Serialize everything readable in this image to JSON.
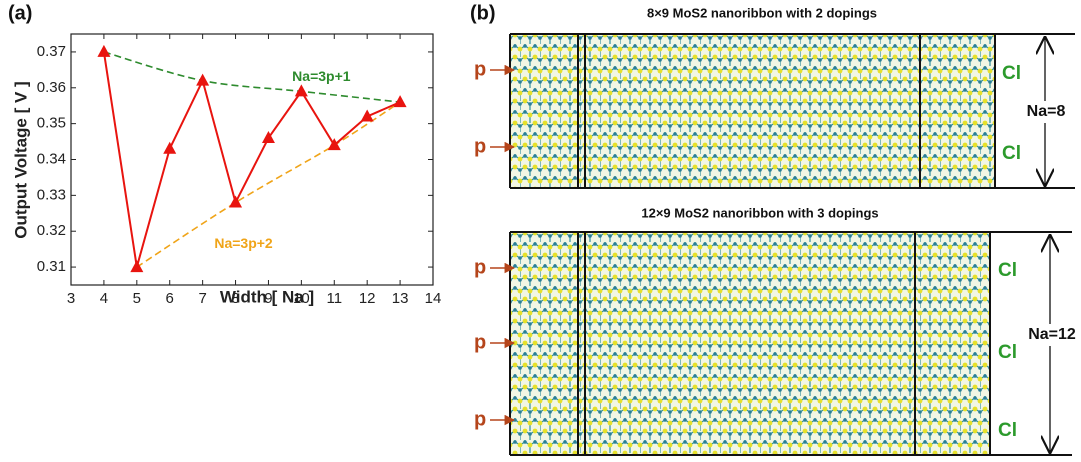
{
  "panel_a": {
    "label": "(a)"
  },
  "chart_data": {
    "type": "line",
    "x_label": "Width [ Na ]",
    "y_label": "Output Voltage [ V ]",
    "xlim": [
      3,
      14
    ],
    "ylim": [
      0.305,
      0.375
    ],
    "xticks": [
      3,
      4,
      5,
      6,
      7,
      8,
      9,
      10,
      11,
      12,
      13,
      14
    ],
    "yticks": [
      0.31,
      0.32,
      0.33,
      0.34,
      0.35,
      0.36,
      0.37
    ],
    "series": [
      {
        "color": "#e8140f",
        "style": "solid",
        "marker": "triangle",
        "x": [
          4,
          5,
          6,
          7,
          8,
          9,
          10,
          11,
          12,
          13
        ],
        "values": [
          0.37,
          0.31,
          0.343,
          0.362,
          0.328,
          0.346,
          0.359,
          0.344,
          0.352,
          0.356
        ]
      },
      {
        "name": "Na=3p+1",
        "color": "#2e8b2e",
        "style": "dashed",
        "x": [
          4,
          7,
          10,
          13
        ],
        "values": [
          0.37,
          0.362,
          0.359,
          0.356
        ]
      },
      {
        "name": "Na=3p+2",
        "color": "#f0a418",
        "style": "dashed",
        "x": [
          5,
          8,
          11,
          13
        ],
        "values": [
          0.31,
          0.328,
          0.344,
          0.356
        ]
      }
    ]
  },
  "panel_b": {
    "label": "(b)",
    "ribbons": [
      {
        "title": "8×9 MoS2 nanoribbon with 2 dopings",
        "p_labels": [
          "p",
          "p"
        ],
        "cl_labels": [
          "Cl",
          "Cl"
        ],
        "width_label": "Na=8"
      },
      {
        "title": "12×9 MoS2 nanoribbon with 3 dopings",
        "p_labels": [
          "p",
          "p",
          "p"
        ],
        "cl_labels": [
          "Cl",
          "Cl",
          "Cl"
        ],
        "width_label": "Na=12"
      }
    ]
  }
}
